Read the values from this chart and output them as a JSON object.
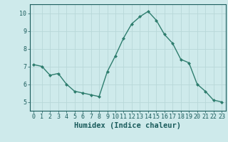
{
  "x": [
    0,
    1,
    2,
    3,
    4,
    5,
    6,
    7,
    8,
    9,
    10,
    11,
    12,
    13,
    14,
    15,
    16,
    17,
    18,
    19,
    20,
    21,
    22,
    23
  ],
  "y": [
    7.1,
    7.0,
    6.5,
    6.6,
    6.0,
    5.6,
    5.5,
    5.4,
    5.3,
    6.7,
    7.6,
    8.6,
    9.4,
    9.8,
    10.1,
    9.6,
    8.8,
    8.3,
    7.4,
    7.2,
    6.0,
    5.6,
    5.1,
    5.0
  ],
  "line_color": "#2e7d6e",
  "marker": "D",
  "marker_size": 2.0,
  "line_width": 1.0,
  "bg_color": "#ceeaeb",
  "grid_color": "#b8d8d8",
  "grid_color_minor": "#c8e2e2",
  "xlabel": "Humidex (Indice chaleur)",
  "xlim": [
    -0.5,
    23.5
  ],
  "ylim": [
    4.5,
    10.5
  ],
  "yticks": [
    5,
    6,
    7,
    8,
    9,
    10
  ],
  "xticks": [
    0,
    1,
    2,
    3,
    4,
    5,
    6,
    7,
    8,
    9,
    10,
    11,
    12,
    13,
    14,
    15,
    16,
    17,
    18,
    19,
    20,
    21,
    22,
    23
  ],
  "xtick_labels": [
    "0",
    "1",
    "2",
    "3",
    "4",
    "5",
    "6",
    "7",
    "8",
    "9",
    "10",
    "11",
    "12",
    "13",
    "14",
    "15",
    "16",
    "17",
    "18",
    "19",
    "20",
    "21",
    "22",
    "23"
  ],
  "tick_color": "#1a5c5c",
  "xlabel_fontsize": 7.5,
  "tick_fontsize": 6.0
}
